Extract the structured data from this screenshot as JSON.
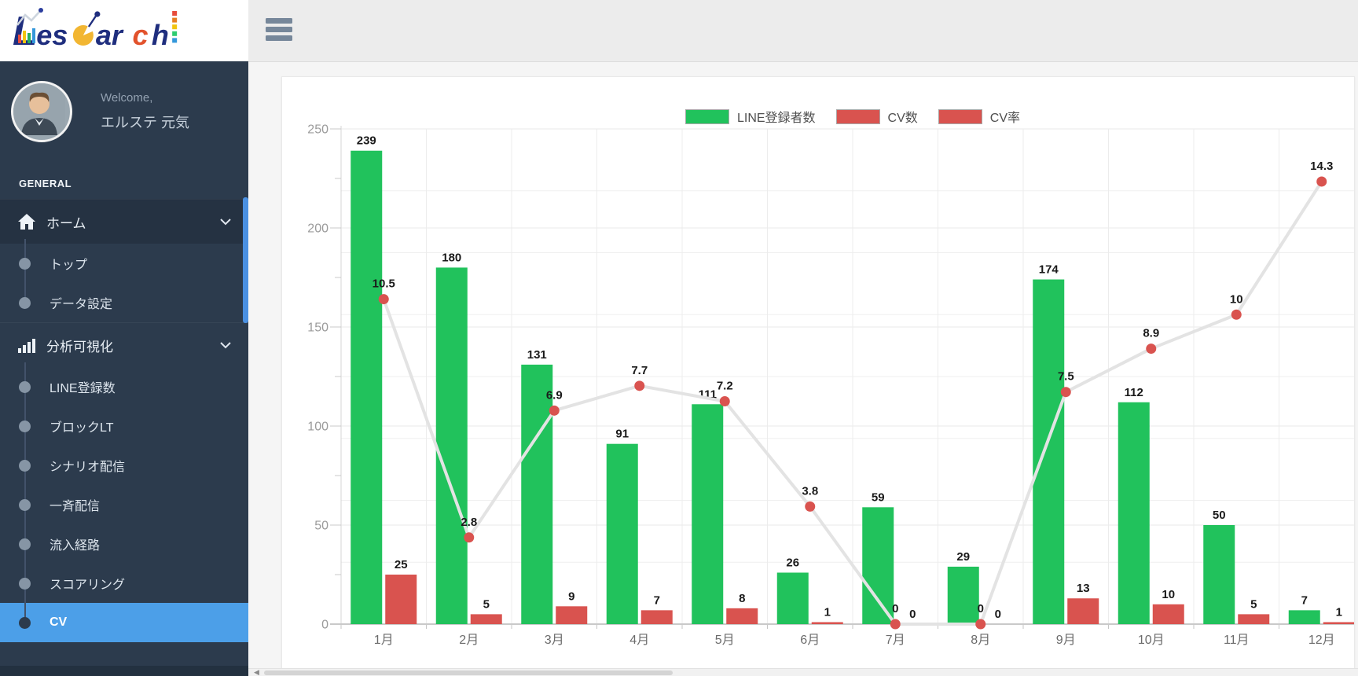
{
  "logo": {
    "brand": "Lesearch",
    "segments": [
      {
        "text": "L",
        "color": "#1f2e7e",
        "size": 52,
        "style": "capital"
      },
      {
        "text": "es",
        "color": "#1f2e7e",
        "size": 36
      },
      {
        "text": "e",
        "color": "#f2b632",
        "size": 36,
        "style": "pie"
      },
      {
        "text": "ar",
        "color": "#1f2e7e",
        "size": 36
      },
      {
        "text": "c",
        "color": "#e2522c",
        "size": 36
      },
      {
        "text": "h",
        "color": "#1f2e7e",
        "size": 36,
        "style": "dashes"
      }
    ],
    "decor_bar_colors": [
      "#e74c3c",
      "#f1c40f",
      "#27ae60",
      "#3498db"
    ],
    "dash_colors": [
      "#e74c3c",
      "#e67e22",
      "#f1c40f",
      "#2ecc71",
      "#3498db"
    ]
  },
  "sidebar": {
    "welcome_label": "Welcome,",
    "user_name": "エルステ 元気",
    "section_label": "GENERAL",
    "active_color": "#4c9fe8",
    "groups": [
      {
        "parent": {
          "label": "ホーム",
          "icon": "home-icon",
          "expanded": true,
          "shaded": true
        },
        "children": [
          {
            "label": "トップ",
            "active": false
          },
          {
            "label": "データ設定",
            "active": false
          }
        ]
      },
      {
        "parent": {
          "label": "分析可視化",
          "icon": "bar-chart-icon",
          "expanded": true,
          "shaded": false
        },
        "children": [
          {
            "label": "LINE登録数",
            "active": false
          },
          {
            "label": "ブロックLT",
            "active": false
          },
          {
            "label": "シナリオ配信",
            "active": false
          },
          {
            "label": "一斉配信",
            "active": false
          },
          {
            "label": "流入経路",
            "active": false
          },
          {
            "label": "スコアリング",
            "active": false
          },
          {
            "label": "CV",
            "active": true
          }
        ]
      }
    ]
  },
  "topbar": {
    "hamburger_icon": "hamburger-menu-icon"
  },
  "chart_data": {
    "type": "bar+line",
    "categories": [
      "1月",
      "2月",
      "3月",
      "4月",
      "5月",
      "6月",
      "7月",
      "8月",
      "9月",
      "10月",
      "11月",
      "12月"
    ],
    "series": [
      {
        "name": "LINE登録者数",
        "type": "bar",
        "axis": "left",
        "color": "#21c25c",
        "values": [
          239,
          180,
          131,
          91,
          111,
          26,
          59,
          29,
          174,
          112,
          50,
          7
        ]
      },
      {
        "name": "CV数",
        "type": "bar",
        "axis": "left",
        "color": "#d9534f",
        "values": [
          25,
          5,
          9,
          7,
          8,
          1,
          0,
          0,
          13,
          10,
          5,
          1
        ]
      },
      {
        "name": "CV率",
        "type": "line",
        "axis": "right",
        "color": "#d9534f",
        "line_color": "#e3e3e3",
        "values": [
          10.5,
          2.8,
          6.9,
          7.7,
          7.2,
          3.8,
          0,
          0,
          7.5,
          8.9,
          10,
          14.3
        ]
      }
    ],
    "left_axis": {
      "min": 0,
      "max": 250,
      "tick_step": 50,
      "minor_tick_step": 25,
      "labels": [
        "0",
        "50",
        "100",
        "150",
        "200",
        "250"
      ]
    },
    "right_axis": {
      "min": 0,
      "max": 16,
      "grid_step": 2,
      "labels_visible": false
    },
    "legend_position": "top",
    "grid": true,
    "data_labels": true
  }
}
